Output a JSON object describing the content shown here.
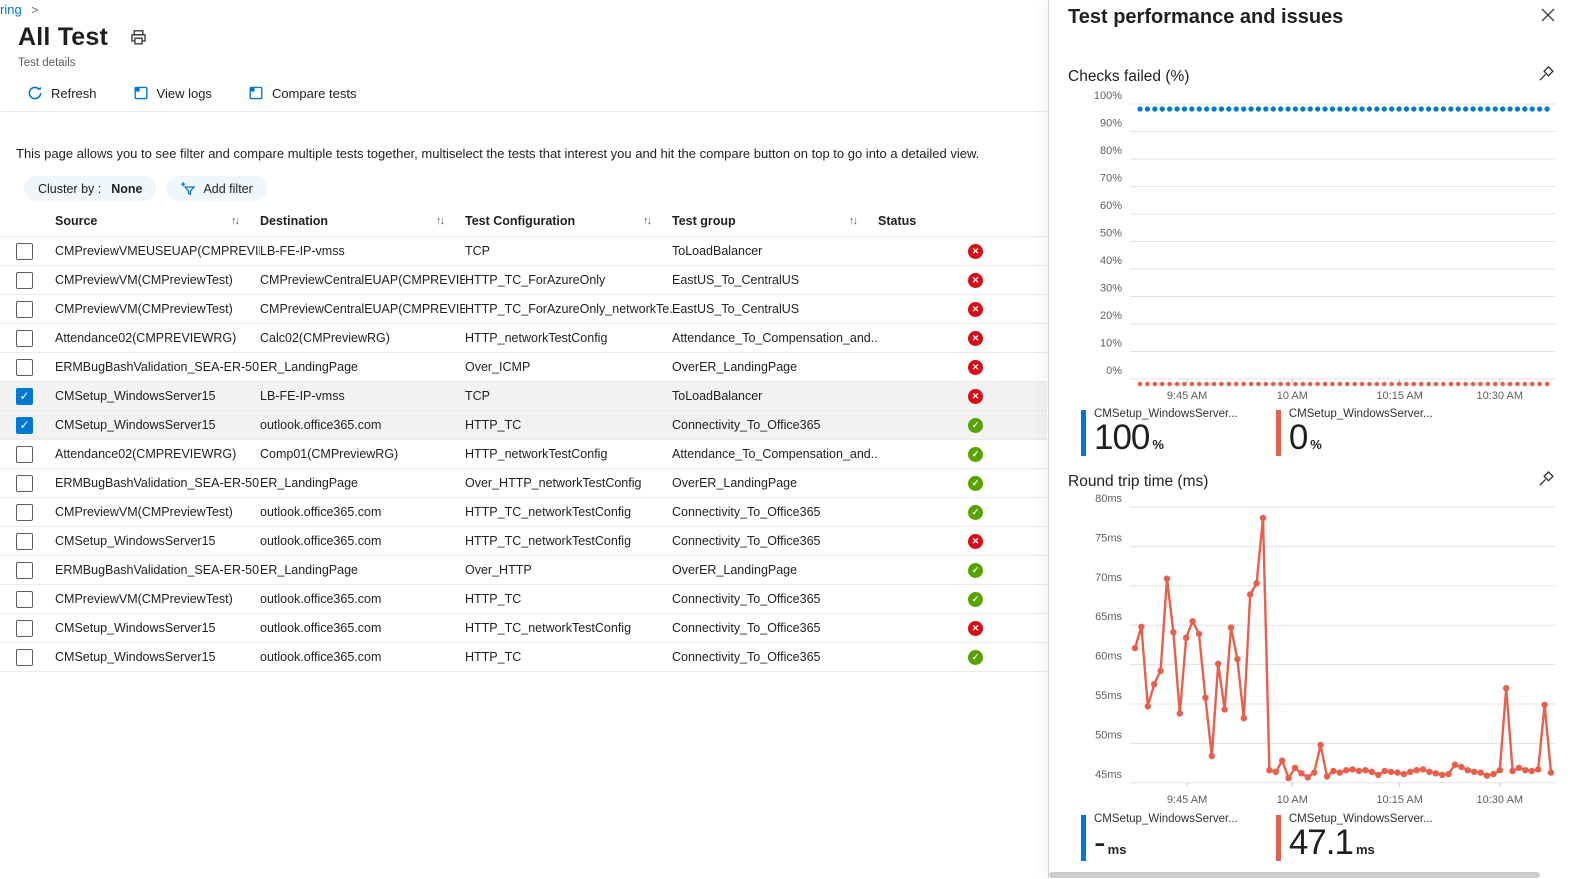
{
  "breadcrumb": {
    "label": "ring",
    "chevron": ">"
  },
  "header": {
    "title": "All Test",
    "subtitle": "Test details"
  },
  "toolbar": {
    "refresh_label": "Refresh",
    "view_logs_label": "View logs",
    "compare_tests_label": "Compare tests"
  },
  "description": "This page allows you to see filter and compare multiple tests together, multiselect the tests that interest you and hit the compare button on top to go into a detailed view.",
  "filters": {
    "cluster_by_label": "Cluster by :",
    "cluster_by_value": "None",
    "add_filter_label": "Add filter"
  },
  "table": {
    "columns": [
      "Source",
      "Destination",
      "Test Configuration",
      "Test group",
      "Status"
    ],
    "sort_glyph": "↑↓",
    "rows": [
      {
        "source": "CMPreviewVMEUSEUAP(CMPREVIE...",
        "destination": "LB-FE-IP-vmss",
        "config": "TCP",
        "group": "ToLoadBalancer",
        "status": "fail",
        "checked": false,
        "selected": false
      },
      {
        "source": "CMPreviewVM(CMPreviewTest)",
        "destination": "CMPreviewCentralEUAP(CMPREVIE...",
        "config": "HTTP_TC_ForAzureOnly",
        "group": "EastUS_To_CentralUS",
        "status": "fail",
        "checked": false,
        "selected": false
      },
      {
        "source": "CMPreviewVM(CMPreviewTest)",
        "destination": "CMPreviewCentralEUAP(CMPREVIE...",
        "config": "HTTP_TC_ForAzureOnly_networkTe...",
        "group": "EastUS_To_CentralUS",
        "status": "fail",
        "checked": false,
        "selected": false
      },
      {
        "source": "Attendance02(CMPREVIEWRG)",
        "destination": "Calc02(CMPreviewRG)",
        "config": "HTTP_networkTestConfig",
        "group": "Attendance_To_Compensation_and...",
        "status": "fail",
        "checked": false,
        "selected": false
      },
      {
        "source": "ERMBugBashValidation_SEA-ER-50...",
        "destination": "ER_LandingPage",
        "config": "Over_ICMP",
        "group": "OverER_LandingPage",
        "status": "fail",
        "checked": false,
        "selected": false
      },
      {
        "source": "CMSetup_WindowsServer15",
        "destination": "LB-FE-IP-vmss",
        "config": "TCP",
        "group": "ToLoadBalancer",
        "status": "fail",
        "checked": true,
        "selected": true
      },
      {
        "source": "CMSetup_WindowsServer15",
        "destination": "outlook.office365.com",
        "config": "HTTP_TC",
        "group": "Connectivity_To_Office365",
        "status": "pass",
        "checked": true,
        "selected": true
      },
      {
        "source": "Attendance02(CMPREVIEWRG)",
        "destination": "Comp01(CMPreviewRG)",
        "config": "HTTP_networkTestConfig",
        "group": "Attendance_To_Compensation_and...",
        "status": "pass",
        "checked": false,
        "selected": false
      },
      {
        "source": "ERMBugBashValidation_SEA-ER-50...",
        "destination": "ER_LandingPage",
        "config": "Over_HTTP_networkTestConfig",
        "group": "OverER_LandingPage",
        "status": "pass",
        "checked": false,
        "selected": false
      },
      {
        "source": "CMPreviewVM(CMPreviewTest)",
        "destination": "outlook.office365.com",
        "config": "HTTP_TC_networkTestConfig",
        "group": "Connectivity_To_Office365",
        "status": "pass",
        "checked": false,
        "selected": false
      },
      {
        "source": "CMSetup_WindowsServer15",
        "destination": "outlook.office365.com",
        "config": "HTTP_TC_networkTestConfig",
        "group": "Connectivity_To_Office365",
        "status": "fail",
        "checked": false,
        "selected": false
      },
      {
        "source": "ERMBugBashValidation_SEA-ER-50...",
        "destination": "ER_LandingPage",
        "config": "Over_HTTP",
        "group": "OverER_LandingPage",
        "status": "pass",
        "checked": false,
        "selected": false
      },
      {
        "source": "CMPreviewVM(CMPreviewTest)",
        "destination": "outlook.office365.com",
        "config": "HTTP_TC",
        "group": "Connectivity_To_Office365",
        "status": "pass",
        "checked": false,
        "selected": false
      },
      {
        "source": "CMSetup_WindowsServer15",
        "destination": "outlook.office365.com",
        "config": "HTTP_TC_networkTestConfig",
        "group": "Connectivity_To_Office365",
        "status": "fail",
        "checked": false,
        "selected": false
      },
      {
        "source": "CMSetup_WindowsServer15",
        "destination": "outlook.office365.com",
        "config": "HTTP_TC",
        "group": "Connectivity_To_Office365",
        "status": "pass",
        "checked": false,
        "selected": false
      }
    ]
  },
  "panel": {
    "title": "Test performance and issues"
  },
  "colors": {
    "accent_blue": "#0078d4",
    "chart_red": "#e8604c",
    "status_fail": "#d90b16",
    "status_pass": "#57a300"
  },
  "chart_data": [
    {
      "type": "line",
      "title": "Checks failed (%)",
      "ylabel": "%",
      "ylim": [
        0,
        100
      ],
      "yticks": [
        100,
        90,
        80,
        70,
        60,
        50,
        40,
        30,
        20,
        10,
        0
      ],
      "ytick_suffix": "%",
      "xticks": [
        {
          "label": "9:45 AM",
          "pos": 0.134
        },
        {
          "label": "10 AM",
          "pos": 0.381
        },
        {
          "label": "10:15 AM",
          "pos": 0.633
        },
        {
          "label": "10:30 AM",
          "pos": 0.868
        }
      ],
      "x_range": [
        "9:37 AM",
        "10:38 AM"
      ],
      "grid": true,
      "legend_position": "bottom",
      "series": [
        {
          "name": "CMSetup_WindowsServer...",
          "color": "#0078d4",
          "style": "dotted",
          "constant_value": 100,
          "legend_value": "100",
          "legend_unit": "%"
        },
        {
          "name": "CMSetup_WindowsServer...",
          "color": "#e8604c",
          "style": "dotted",
          "constant_value": 0,
          "legend_value": "0",
          "legend_unit": "%"
        }
      ]
    },
    {
      "type": "line",
      "title": "Round trip time (ms)",
      "ylabel": "ms",
      "ylim": [
        45,
        80
      ],
      "yticks": [
        80,
        75,
        70,
        65,
        60,
        55,
        50,
        45
      ],
      "ytick_suffix": "ms",
      "xticks": [
        {
          "label": "9:45 AM",
          "pos": 0.134
        },
        {
          "label": "10 AM",
          "pos": 0.381
        },
        {
          "label": "10:15 AM",
          "pos": 0.633
        },
        {
          "label": "10:30 AM",
          "pos": 0.868
        }
      ],
      "x_range": [
        "9:37 AM",
        "10:38 AM"
      ],
      "grid": true,
      "legend_position": "bottom",
      "series": [
        {
          "name": "CMSetup_WindowsServer...",
          "color": "#0078d4",
          "style": "none",
          "values": [],
          "legend_value": "-",
          "legend_unit": "ms"
        },
        {
          "name": "CMSetup_WindowsServer...",
          "color": "#e8604c",
          "style": "line-markers",
          "values": [
            62.1,
            64.8,
            54.7,
            57.5,
            59.2,
            70.9,
            64.1,
            53.8,
            63.4,
            65.5,
            63.9,
            55.8,
            48.4,
            60.1,
            54.3,
            64.7,
            60.7,
            53.2,
            68.9,
            70.3,
            78.6,
            46.6,
            46.4,
            47.8,
            45.6,
            46.9,
            46.2,
            45.7,
            46.3,
            49.8,
            45.8,
            46.5,
            46.3,
            46.6,
            46.7,
            46.5,
            46.6,
            46.4,
            46.0,
            46.5,
            46.4,
            46.3,
            46.1,
            46.4,
            46.6,
            46.7,
            46.4,
            46.2,
            46.0,
            46.1,
            47.3,
            47.0,
            46.6,
            46.4,
            46.3,
            45.9,
            46.1,
            46.6,
            57.0,
            46.5,
            46.9,
            46.6,
            46.5,
            46.7,
            54.9,
            46.3
          ],
          "legend_value": "47.1",
          "legend_unit": "ms"
        }
      ]
    }
  ]
}
